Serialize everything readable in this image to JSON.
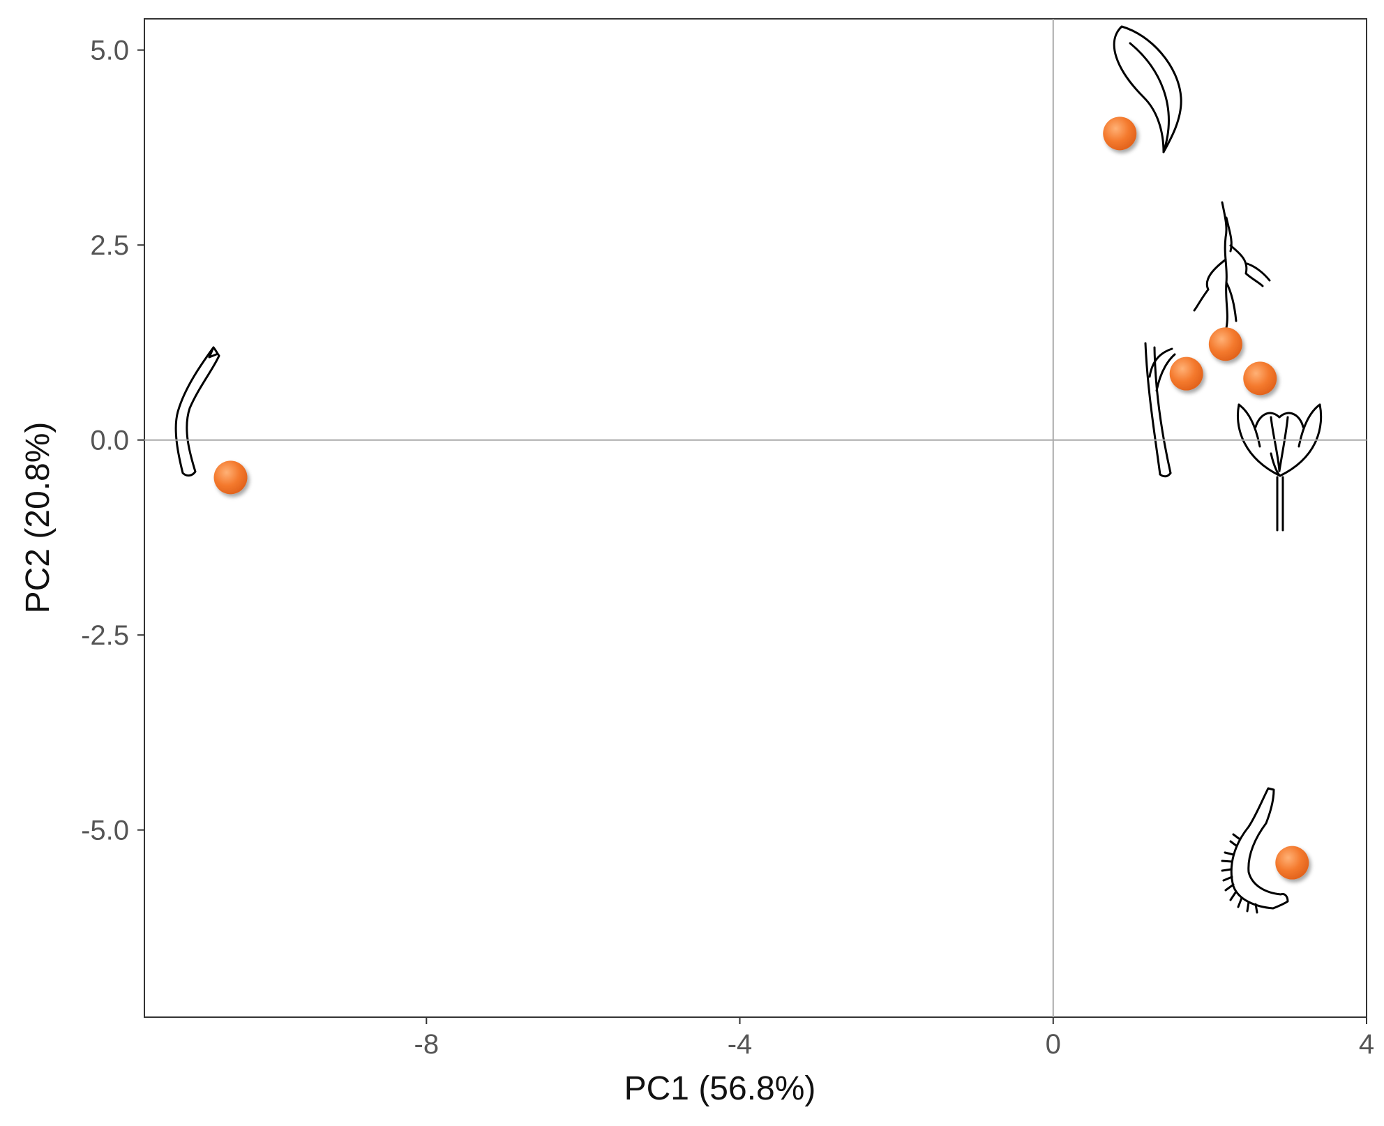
{
  "chart_data": {
    "type": "scatter",
    "title": "",
    "xlabel": "PC1 (56.8%)",
    "ylabel": "PC2 (20.8%)",
    "xlim": [
      -11.6,
      4.0
    ],
    "ylim": [
      -7.4,
      5.4
    ],
    "x_ticks": [
      -8,
      -4,
      0,
      4
    ],
    "x_tick_labels": [
      "-8",
      "-4",
      "0",
      "4"
    ],
    "y_ticks": [
      5.0,
      2.5,
      0.0,
      -2.5,
      -5.0
    ],
    "y_tick_labels": [
      "5.0",
      "2.5",
      "0.0",
      "-2.5",
      "-5.0"
    ],
    "reference_lines": {
      "x": 0,
      "y": 0
    },
    "grid": false,
    "legend": "none",
    "point_color": "#F47A2E",
    "points": [
      {
        "x": 0.85,
        "y": 3.93,
        "icon": "leaf-icon"
      },
      {
        "x": 2.2,
        "y": 1.23,
        "icon": "root-icon"
      },
      {
        "x": 1.7,
        "y": 0.85,
        "icon": "stem-icon"
      },
      {
        "x": 2.64,
        "y": 0.79,
        "icon": "flower-icon"
      },
      {
        "x": -10.5,
        "y": -0.48,
        "icon": "petal-icon"
      },
      {
        "x": 3.05,
        "y": -5.42,
        "icon": "fruit-icon"
      }
    ]
  }
}
